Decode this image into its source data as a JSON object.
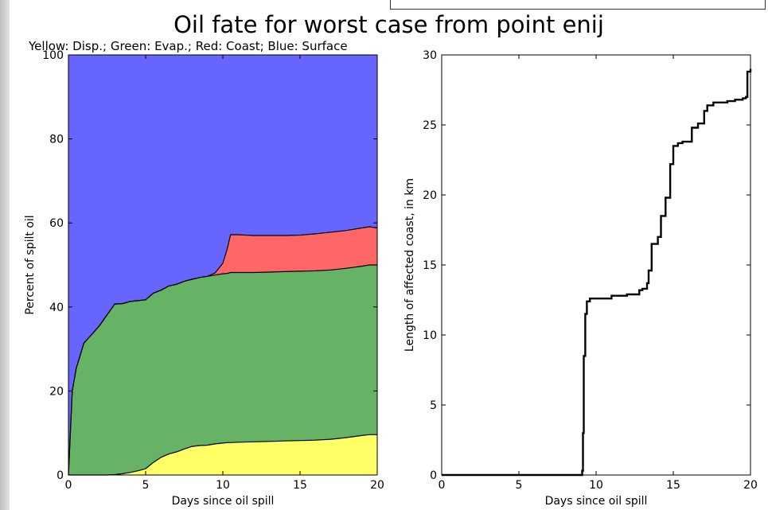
{
  "title": "Oil fate for worst case from point enij",
  "chart_data": [
    {
      "type": "area",
      "stacked": true,
      "subtitle": "Yellow: Disp.; Green: Evap.; Red: Coast; Blue: Surface",
      "xlabel": "Days since oil spill",
      "ylabel": "Percent of spilt oil",
      "xlim": [
        0,
        20
      ],
      "ylim": [
        0,
        100
      ],
      "xticks": [
        0,
        5,
        10,
        15,
        20
      ],
      "yticks": [
        0,
        20,
        40,
        60,
        80,
        100
      ],
      "grid": false,
      "x": [
        0,
        0.25,
        0.5,
        1,
        1.5,
        2,
        2.5,
        3,
        3.5,
        4,
        4.5,
        5,
        5.5,
        6,
        6.5,
        7,
        7.5,
        8,
        8.5,
        9,
        9.5,
        10,
        10.3,
        10.5,
        11,
        12,
        13,
        14,
        15,
        16,
        17,
        18,
        19,
        19.5,
        20
      ],
      "series": [
        {
          "color": "#ffff66",
          "values": [
            0,
            0,
            0,
            0,
            0,
            0,
            0,
            0.1,
            0.3,
            0.6,
            1.0,
            1.5,
            3.0,
            4.2,
            5.0,
            5.5,
            6.2,
            6.8,
            7.0,
            7.1,
            7.4,
            7.6,
            7.7,
            7.7,
            7.8,
            7.9,
            8.0,
            8.1,
            8.2,
            8.3,
            8.5,
            8.9,
            9.4,
            9.6,
            9.6
          ]
        },
        {
          "color": "#66b366",
          "values": [
            0,
            20,
            25.3,
            31.4,
            33.4,
            35.5,
            38.1,
            40.6,
            40.5,
            40.7,
            40.5,
            40.2,
            40.3,
            39.8,
            40.0,
            39.9,
            39.9,
            39.8,
            40.0,
            40.2,
            40.2,
            40.3,
            40.3,
            40.5,
            40.4,
            40.3,
            40.3,
            40.3,
            40.3,
            40.3,
            40.3,
            40.3,
            40.3,
            40.4,
            40.4
          ]
        },
        {
          "color": "#ff6666",
          "values": [
            0,
            0,
            0,
            0,
            0,
            0,
            0,
            0,
            0,
            0,
            0,
            0,
            0,
            0,
            0,
            0,
            0,
            0,
            0,
            0,
            0.5,
            2.5,
            6.0,
            9.0,
            9.0,
            8.8,
            8.7,
            8.6,
            8.6,
            8.8,
            9.0,
            9.0,
            9.1,
            9.1,
            8.8
          ]
        },
        {
          "color": "#6666ff",
          "values": [
            100,
            80,
            74.7,
            68.6,
            66.6,
            64.5,
            61.9,
            59.3,
            59.2,
            58.7,
            58.5,
            58.3,
            56.7,
            56.0,
            55.0,
            54.6,
            53.9,
            53.4,
            53.0,
            52.7,
            51.9,
            49.6,
            46.0,
            42.8,
            42.8,
            43.0,
            43.0,
            43.0,
            42.9,
            42.6,
            42.2,
            41.8,
            41.2,
            40.9,
            41.2
          ]
        }
      ]
    },
    {
      "type": "line",
      "step": true,
      "xlabel": "Days since oil spill",
      "ylabel": "Length of affected coast, in km",
      "xlim": [
        0,
        20
      ],
      "ylim": [
        0,
        30
      ],
      "xticks": [
        0,
        5,
        10,
        15,
        20
      ],
      "yticks": [
        0,
        5,
        10,
        15,
        20,
        25,
        30
      ],
      "grid": false,
      "x": [
        0,
        9.1,
        9.15,
        9.2,
        9.3,
        9.4,
        9.6,
        10,
        11,
        12,
        12.8,
        13,
        13.3,
        13.4,
        13.6,
        14,
        14.2,
        14.5,
        14.8,
        15,
        15.3,
        15.6,
        16.2,
        16.6,
        17.0,
        17.2,
        17.6,
        18.5,
        19.0,
        19.5,
        19.7,
        19.8,
        20
      ],
      "values": [
        0,
        0.3,
        3,
        8.5,
        11.5,
        12.4,
        12.6,
        12.6,
        12.8,
        12.9,
        13.2,
        13.3,
        13.7,
        14.6,
        16.5,
        17.0,
        18.5,
        19.8,
        22.2,
        23.5,
        23.7,
        23.8,
        24.8,
        25.1,
        26.0,
        26.4,
        26.6,
        26.7,
        26.8,
        26.9,
        27.0,
        28.8,
        29.0
      ]
    }
  ]
}
